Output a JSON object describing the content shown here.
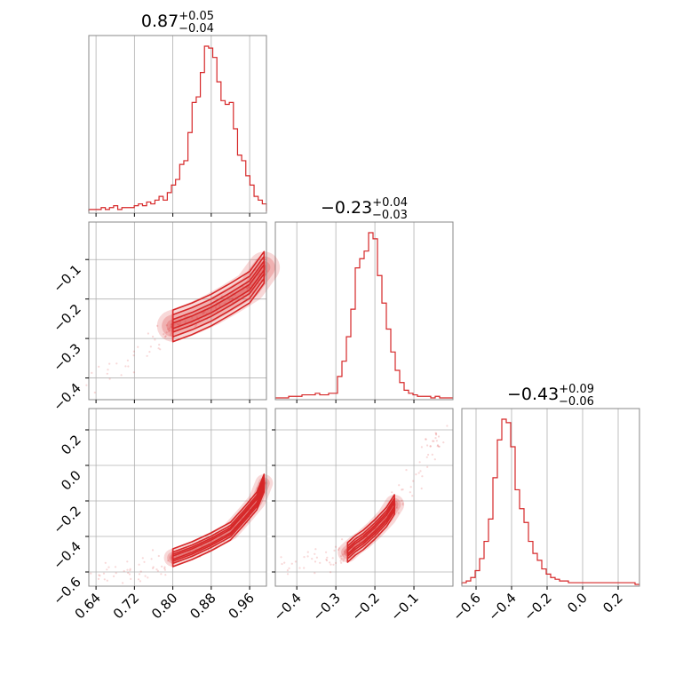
{
  "chart_data": {
    "type": "corner",
    "color": "#d62728",
    "panels": [
      {
        "id": "hist-0",
        "type": "histogram",
        "title": {
          "median": "0.87",
          "plus": "+0.05",
          "minus": "−0.04"
        },
        "x_range": [
          0.625,
          0.995
        ],
        "x_ticks": [
          0.64,
          0.72,
          0.8,
          0.88,
          0.96
        ],
        "x_tick_labels": [
          "0.64",
          "0.72",
          "0.80",
          "0.88",
          "0.96"
        ],
        "bins": [
          0.625,
          0.995
        ],
        "counts": [
          1,
          1,
          1,
          2,
          1,
          2,
          3,
          1,
          2,
          2,
          2,
          3,
          4,
          3,
          5,
          4,
          6,
          8,
          6,
          10,
          14,
          17,
          25,
          27,
          42,
          58,
          61,
          74,
          88,
          87,
          82,
          69,
          59,
          57,
          58,
          44,
          30,
          27,
          19,
          14,
          8,
          6,
          4
        ]
      },
      {
        "id": "hist-1",
        "type": "histogram",
        "title": {
          "median": "−0.23",
          "plus": "+0.04",
          "minus": "−0.03"
        },
        "x_range": [
          -0.455,
          0.0
        ],
        "x_ticks": [
          -0.4,
          -0.3,
          -0.2,
          -0.1
        ],
        "x_tick_labels": [
          "−0.4",
          "−0.3",
          "−0.2",
          "−0.1"
        ],
        "bins": [
          -0.455,
          0.0
        ],
        "counts": [
          0,
          0,
          0,
          1,
          1,
          1,
          2,
          2,
          2,
          3,
          2,
          2,
          3,
          3,
          14,
          24,
          40,
          58,
          85,
          91,
          96,
          108,
          104,
          80,
          62,
          45,
          30,
          18,
          10,
          5,
          3,
          2,
          1,
          1,
          1,
          0,
          1,
          0,
          0,
          0
        ]
      },
      {
        "id": "hist-2",
        "type": "histogram",
        "title": {
          "median": "−0.43",
          "plus": "+0.09",
          "minus": "−0.06"
        },
        "x_range": [
          -0.68,
          0.32
        ],
        "x_ticks": [
          -0.6,
          -0.4,
          -0.2,
          0.0,
          0.2
        ],
        "x_tick_labels": [
          "−0.6",
          "−0.4",
          "−0.2",
          "0.0",
          "0.2"
        ],
        "bins": [
          -0.68,
          0.32
        ],
        "counts": [
          1,
          2,
          4,
          8,
          15,
          25,
          38,
          62,
          84,
          96,
          94,
          80,
          55,
          44,
          36,
          25,
          18,
          14,
          9,
          6,
          4,
          3,
          2,
          2,
          1,
          1,
          1,
          1,
          1,
          1,
          1,
          1,
          1,
          1,
          1,
          1,
          1,
          1,
          1,
          0
        ]
      },
      {
        "id": "scatter-1-0",
        "type": "contour_scatter",
        "x_range": [
          0.625,
          0.995
        ],
        "y_range": [
          -0.455,
          -0.005
        ],
        "y_ticks": [
          -0.4,
          -0.3,
          -0.2,
          -0.1
        ],
        "y_tick_labels": [
          "−0.4",
          "−0.3",
          "−0.2",
          "−0.1"
        ],
        "ridge": [
          [
            0.8,
            -0.268
          ],
          [
            0.84,
            -0.25
          ],
          [
            0.88,
            -0.228
          ],
          [
            0.92,
            -0.2
          ],
          [
            0.96,
            -0.17
          ],
          [
            0.99,
            -0.12
          ]
        ],
        "contour_widths": [
          0.04,
          0.028,
          0.016,
          0.007
        ],
        "tail": [
          [
            0.63,
            -0.4
          ],
          [
            0.69,
            -0.38
          ],
          [
            0.74,
            -0.34
          ],
          [
            0.78,
            -0.3
          ],
          [
            0.8,
            -0.268
          ]
        ]
      },
      {
        "id": "scatter-2-0",
        "type": "contour_scatter",
        "x_range": [
          0.625,
          0.995
        ],
        "y_range": [
          -0.68,
          0.32
        ],
        "y_ticks": [
          -0.6,
          -0.4,
          -0.2,
          0.0,
          0.2
        ],
        "y_tick_labels": [
          "−0.6",
          "−0.4",
          "−0.2",
          "0.0",
          "0.2"
        ],
        "ridge": [
          [
            0.8,
            -0.52
          ],
          [
            0.84,
            -0.48
          ],
          [
            0.88,
            -0.43
          ],
          [
            0.92,
            -0.37
          ],
          [
            0.95,
            -0.28
          ],
          [
            0.975,
            -0.2
          ],
          [
            0.99,
            -0.1
          ]
        ],
        "contour_widths": [
          0.05,
          0.032,
          0.02,
          0.01
        ],
        "tail": [
          [
            0.63,
            -0.64
          ],
          [
            0.69,
            -0.61
          ],
          [
            0.74,
            -0.58
          ],
          [
            0.78,
            -0.55
          ],
          [
            0.8,
            -0.52
          ]
        ]
      },
      {
        "id": "scatter-2-1",
        "type": "contour_scatter",
        "x_range": [
          -0.455,
          0.0
        ],
        "y_range": [
          -0.68,
          0.32
        ],
        "ridge": [
          [
            -0.27,
            -0.49
          ],
          [
            -0.25,
            -0.45
          ],
          [
            -0.23,
            -0.42
          ],
          [
            -0.2,
            -0.36
          ],
          [
            -0.17,
            -0.29
          ],
          [
            -0.15,
            -0.22
          ]
        ],
        "contour_widths": [
          0.055,
          0.036,
          0.022,
          0.01
        ],
        "tail": [
          [
            -0.45,
            -0.56
          ],
          [
            -0.38,
            -0.55
          ],
          [
            -0.32,
            -0.52
          ],
          [
            -0.27,
            -0.49
          ]
        ],
        "head": [
          [
            -0.15,
            -0.22
          ],
          [
            -0.1,
            -0.06
          ],
          [
            -0.05,
            0.09
          ],
          [
            -0.02,
            0.18
          ]
        ]
      }
    ]
  }
}
